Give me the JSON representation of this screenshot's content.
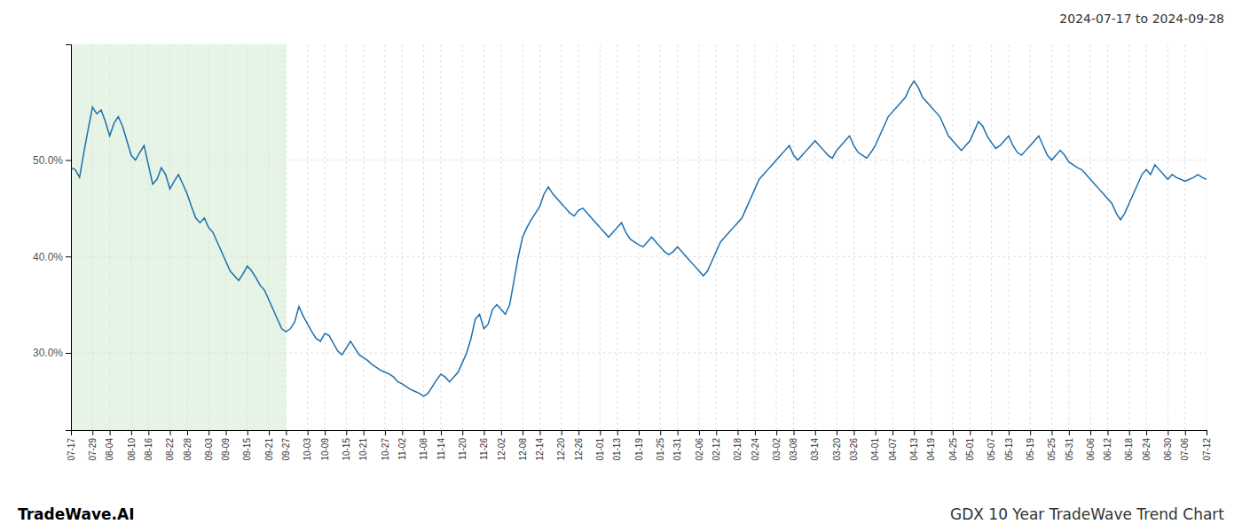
{
  "chart_data": {
    "type": "line",
    "title": "GDX 10 Year TradeWave Trend Chart",
    "subtitle": "2024-07-17 to 2024-09-28",
    "annotations": [
      "TradeWave.AI"
    ],
    "color": "#1a6faf",
    "grid": true,
    "ylim": [
      22,
      62
    ],
    "yticks": [
      {
        "value": 30,
        "label": "30.0%"
      },
      {
        "value": 40,
        "label": "40.0%"
      },
      {
        "value": 50,
        "label": "50.0%"
      }
    ],
    "shaded_range": {
      "from": "07-17",
      "to": "09-27",
      "color": "#d4ecd4"
    },
    "categories": [
      "07-17",
      null,
      null,
      null,
      null,
      "07-29",
      null,
      null,
      null,
      "08-04",
      null,
      null,
      null,
      null,
      "08-10",
      null,
      null,
      null,
      "08-16",
      null,
      null,
      null,
      null,
      "08-22",
      null,
      null,
      null,
      "08-28",
      null,
      null,
      null,
      null,
      "09-03",
      null,
      null,
      null,
      "09-09",
      null,
      null,
      null,
      null,
      "09-15",
      null,
      null,
      null,
      null,
      "09-21",
      null,
      null,
      null,
      "09-27",
      null,
      null,
      null,
      null,
      "10-03",
      null,
      null,
      null,
      "10-09",
      null,
      null,
      null,
      null,
      "10-15",
      null,
      null,
      null,
      "10-21",
      null,
      null,
      null,
      null,
      "10-27",
      null,
      null,
      null,
      "11-02",
      null,
      null,
      null,
      null,
      "11-08",
      null,
      null,
      null,
      "11-14",
      null,
      null,
      null,
      null,
      "11-20",
      null,
      null,
      null,
      null,
      "11-26",
      null,
      null,
      null,
      "12-02",
      null,
      null,
      null,
      null,
      "12-08",
      null,
      null,
      null,
      "12-14",
      null,
      null,
      null,
      null,
      "12-20",
      null,
      null,
      null,
      "12-26",
      null,
      null,
      null,
      null,
      "01-01",
      null,
      null,
      null,
      "01-13",
      null,
      null,
      null,
      null,
      "01-19",
      null,
      null,
      null,
      null,
      "01-25",
      null,
      null,
      null,
      "01-31",
      null,
      null,
      null,
      null,
      "02-06",
      null,
      null,
      null,
      "02-12",
      null,
      null,
      null,
      null,
      "02-18",
      null,
      null,
      null,
      "02-24",
      null,
      null,
      null,
      null,
      "03-02",
      null,
      null,
      null,
      "03-08",
      null,
      null,
      null,
      null,
      "03-14",
      null,
      null,
      null,
      null,
      "03-20",
      null,
      null,
      null,
      "03-26",
      null,
      null,
      null,
      null,
      "04-01",
      null,
      null,
      null,
      "04-07",
      null,
      null,
      null,
      null,
      "04-13",
      null,
      null,
      null,
      "04-19",
      null,
      null,
      null,
      null,
      "04-25",
      null,
      null,
      null,
      "05-01",
      null,
      null,
      null,
      null,
      "05-07",
      null,
      null,
      null,
      "05-13",
      null,
      null,
      null,
      null,
      "05-19",
      null,
      null,
      null,
      null,
      "05-25",
      null,
      null,
      null,
      "05-31",
      null,
      null,
      null,
      null,
      "06-06",
      null,
      null,
      null,
      "06-12",
      null,
      null,
      null,
      null,
      "06-18",
      null,
      null,
      null,
      "06-24",
      null,
      null,
      null,
      null,
      "06-30",
      null,
      null,
      null,
      "07-06",
      null,
      null,
      null,
      null,
      "07-12"
    ],
    "values": [
      49.2,
      49.0,
      48.2,
      50.8,
      53.2,
      55.5,
      54.8,
      55.2,
      54.0,
      52.5,
      53.8,
      54.5,
      53.5,
      52.0,
      50.5,
      50.0,
      50.8,
      51.5,
      49.5,
      47.5,
      48.0,
      49.2,
      48.5,
      47.0,
      47.8,
      48.5,
      47.5,
      46.5,
      45.2,
      44.0,
      43.5,
      44.0,
      43.0,
      42.5,
      41.5,
      40.5,
      39.5,
      38.5,
      38.0,
      37.5,
      38.2,
      39.0,
      38.5,
      37.8,
      37.0,
      36.5,
      35.5,
      34.5,
      33.5,
      32.5,
      32.2,
      32.5,
      33.2,
      34.8,
      33.8,
      33.0,
      32.2,
      31.5,
      31.2,
      32.0,
      31.8,
      31.0,
      30.2,
      29.8,
      30.5,
      31.2,
      30.5,
      29.8,
      29.5,
      29.2,
      28.8,
      28.5,
      28.2,
      28.0,
      27.8,
      27.5,
      27.0,
      26.8,
      26.5,
      26.2,
      26.0,
      25.8,
      25.5,
      25.8,
      26.5,
      27.2,
      27.8,
      27.5,
      27.0,
      27.5,
      28.0,
      29.0,
      30.0,
      31.5,
      33.5,
      34.0,
      32.5,
      33.0,
      34.5,
      35.0,
      34.5,
      34.0,
      35.0,
      37.5,
      40.0,
      42.0,
      43.0,
      43.8,
      44.5,
      45.2,
      46.5,
      47.2,
      46.5,
      46.0,
      45.5,
      45.0,
      44.5,
      44.2,
      44.8,
      45.0,
      44.5,
      44.0,
      43.5,
      43.0,
      42.5,
      42.0,
      42.5,
      43.0,
      43.5,
      42.5,
      41.8,
      41.5,
      41.2,
      41.0,
      41.5,
      42.0,
      41.5,
      41.0,
      40.5,
      40.2,
      40.5,
      41.0,
      40.5,
      40.0,
      39.5,
      39.0,
      38.5,
      38.0,
      38.5,
      39.5,
      40.5,
      41.5,
      42.0,
      42.5,
      43.0,
      43.5,
      44.0,
      45.0,
      46.0,
      47.0,
      48.0,
      48.5,
      49.0,
      49.5,
      50.0,
      50.5,
      51.0,
      51.5,
      50.5,
      50.0,
      50.5,
      51.0,
      51.5,
      52.0,
      51.5,
      51.0,
      50.5,
      50.2,
      51.0,
      51.5,
      52.0,
      52.5,
      51.5,
      50.8,
      50.5,
      50.2,
      50.8,
      51.5,
      52.5,
      53.5,
      54.5,
      55.0,
      55.5,
      56.0,
      56.5,
      57.5,
      58.2,
      57.5,
      56.5,
      56.0,
      55.5,
      55.0,
      54.5,
      53.5,
      52.5,
      52.0,
      51.5,
      51.0,
      51.5,
      52.0,
      53.0,
      54.0,
      53.5,
      52.5,
      51.8,
      51.2,
      51.5,
      52.0,
      52.5,
      51.5,
      50.8,
      50.5,
      51.0,
      51.5,
      52.0,
      52.5,
      51.5,
      50.5,
      50.0,
      50.5,
      51.0,
      50.5,
      49.8,
      49.5,
      49.2,
      49.0,
      48.5,
      48.0,
      47.5,
      47.0,
      46.5,
      46.0,
      45.5,
      44.5,
      43.8,
      44.5,
      45.5,
      46.5,
      47.5,
      48.5,
      49.0,
      48.5,
      49.5,
      49.0,
      48.5,
      48.0,
      48.5,
      48.2,
      48.0,
      47.8,
      48.0,
      48.2,
      48.5,
      48.2,
      48.0
    ]
  }
}
